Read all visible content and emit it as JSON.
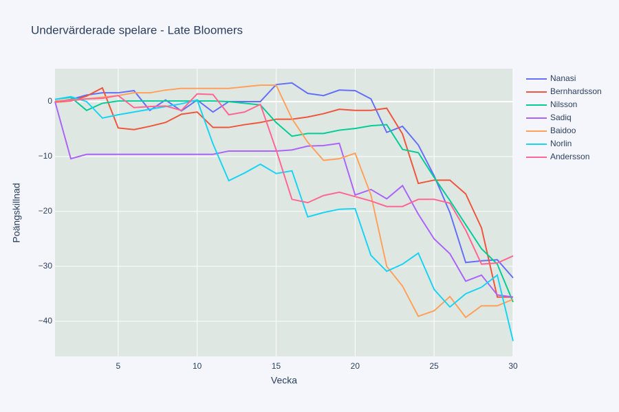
{
  "chart_data": {
    "type": "line",
    "title": "Undervärderade spelare - Late Bloomers",
    "x_label": "Vecka",
    "y_label": "Poängskillnad",
    "x": [
      1,
      2,
      3,
      4,
      5,
      6,
      7,
      8,
      9,
      10,
      11,
      12,
      13,
      14,
      15,
      16,
      17,
      18,
      19,
      20,
      21,
      22,
      23,
      24,
      25,
      26,
      27,
      28,
      29,
      30
    ],
    "xlim": [
      1,
      30
    ],
    "xticks": [
      5,
      10,
      15,
      20,
      25,
      30
    ],
    "ylim": [
      -46.4,
      6
    ],
    "yticks": [
      0,
      {
        "value": -10,
        "label": "−10"
      },
      {
        "value": -20,
        "label": "−20"
      },
      {
        "value": -30,
        "label": "−30"
      },
      {
        "value": -40,
        "label": "−40"
      }
    ],
    "grid": true,
    "legend": "right",
    "series": [
      {
        "name": "Nanasi",
        "color": "#636efa",
        "values": [
          0,
          0.4,
          1.2,
          1.6,
          1.6,
          2,
          -1.6,
          0.3,
          -1.7,
          0.3,
          -1.9,
          0,
          0,
          0,
          3.1,
          3.4,
          1.5,
          1.1,
          2.1,
          2,
          0.5,
          -5.6,
          -4.5,
          -7.9,
          -13.5,
          -20.2,
          -29.3,
          -29,
          -28.8,
          -32.1
        ]
      },
      {
        "name": "Bernhardsson",
        "color": "#ef553b",
        "values": [
          -0.1,
          0.1,
          1,
          2.5,
          -4.8,
          -5.1,
          -4.5,
          -3.8,
          -2.3,
          -1.9,
          -4.7,
          -4.7,
          -4.2,
          -3.8,
          -3.2,
          -3.2,
          -2.8,
          -2.2,
          -1.4,
          -1.6,
          -1.6,
          -1.2,
          -5.9,
          -14.9,
          -14.3,
          -14.3,
          -16.8,
          -23,
          -35.6,
          -35.6
        ]
      },
      {
        "name": "Nilsson",
        "color": "#00cc96",
        "values": [
          0.4,
          0.8,
          -1.6,
          -0.3,
          0.1,
          0.1,
          0.1,
          0.1,
          0.1,
          0.1,
          0.1,
          0,
          -0.3,
          -0.6,
          -3.8,
          -6.3,
          -5.8,
          -5.8,
          -5.2,
          -4.9,
          -4.4,
          -4.2,
          -8.7,
          -9.3,
          -13.8,
          -18,
          -22.4,
          -26.8,
          -29.6,
          -36.5
        ]
      },
      {
        "name": "Sadiq",
        "color": "#ab63fa",
        "values": [
          0,
          -10.4,
          -9.6,
          -9.6,
          -9.6,
          -9.6,
          -9.6,
          -9.6,
          -9.6,
          -9.6,
          -9.6,
          -9,
          -9,
          -9,
          -9,
          -8.8,
          -8.1,
          -8,
          -7.6,
          -17,
          -16,
          -17.7,
          -15.3,
          -20.5,
          -25,
          -27.7,
          -32.7,
          -31.6,
          -35.2,
          -35.6
        ]
      },
      {
        "name": "Baidoo",
        "color": "#ffa15a",
        "values": [
          0.1,
          0.3,
          0.5,
          0.8,
          1.1,
          1.6,
          1.6,
          2.1,
          2.4,
          2.4,
          2.4,
          2.4,
          2.7,
          3,
          3,
          -3.1,
          -7.4,
          -10.7,
          -10.4,
          -9.4,
          -17,
          -30,
          -33.6,
          -39.1,
          -38.1,
          -35.5,
          -39.3,
          -37.2,
          -37.2,
          -36
        ]
      },
      {
        "name": "Norlin",
        "color": "#19d3f3",
        "values": [
          0.4,
          0.9,
          0,
          -3,
          -2.4,
          -1.9,
          -1.4,
          -0.9,
          -0.4,
          0.3,
          -7.7,
          -14.4,
          -13,
          -11.4,
          -13.1,
          -12.6,
          -21,
          -20.2,
          -19.6,
          -19.5,
          -28,
          -30.9,
          -29.6,
          -27.6,
          -34.2,
          -37.4,
          -35,
          -33.8,
          -31.6,
          -43.6
        ]
      },
      {
        "name": "Andersson",
        "color": "#ff6692",
        "values": [
          0,
          0.2,
          0.5,
          0.6,
          1.1,
          -1.1,
          -0.9,
          -0.8,
          -1.6,
          1.4,
          1.3,
          -2.4,
          -1.9,
          -0.5,
          -8.8,
          -17.8,
          -18.4,
          -17.1,
          -16.5,
          -17.3,
          -18.1,
          -19.1,
          -19.1,
          -17.8,
          -17.8,
          -18.5,
          -23.4,
          -29.6,
          -29.4,
          -28.1
        ]
      }
    ]
  }
}
